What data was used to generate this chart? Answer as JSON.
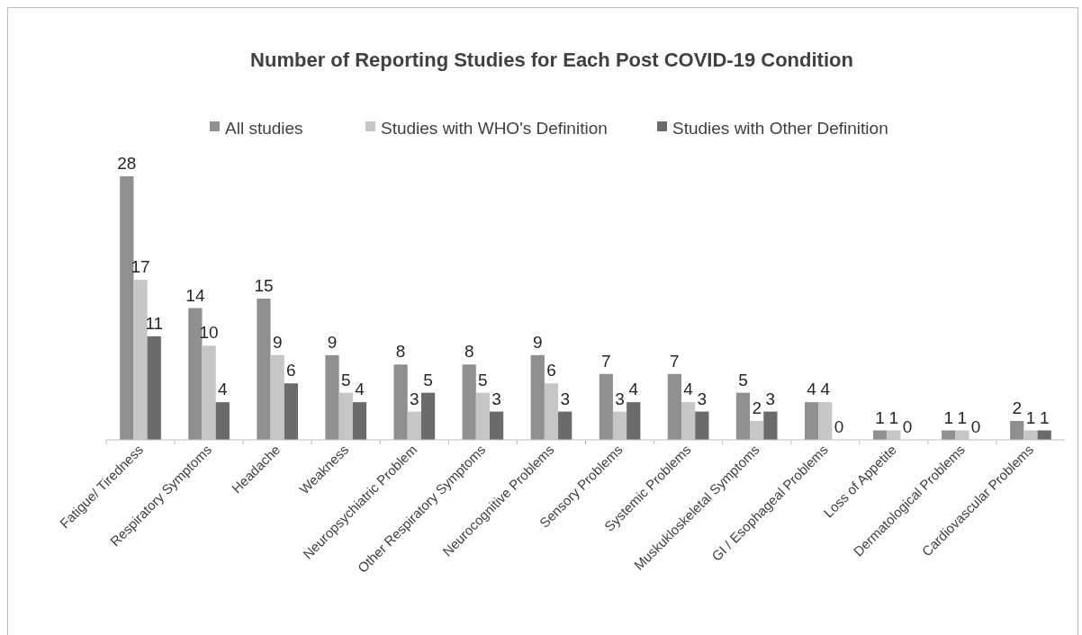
{
  "chart_data": {
    "type": "bar",
    "title": "Number of Reporting Studies for Each Post COVID-19 Condition",
    "categories": [
      "Fatigue/ Tiredness",
      "Respiratory Symptoms",
      "Headache",
      "Weakness",
      "Neuropsychiatric Problem",
      "Other Respiratory Symptoms",
      "Neurocognitive Problems",
      "Sensory Problems",
      "Systemic Problems",
      "Muskukloskeletal Symptoms",
      "GI / Esophageal Problems",
      "Loss of Appetite",
      "Dermatological Problems",
      "Cardiovascular Problems"
    ],
    "series": [
      {
        "name": "All studies",
        "color": "#8f8f8f",
        "values": [
          28,
          14,
          15,
          9,
          8,
          8,
          9,
          7,
          7,
          5,
          4,
          1,
          1,
          2
        ]
      },
      {
        "name": "Studies with WHO's Definition",
        "color": "#c6c6c6",
        "values": [
          17,
          10,
          9,
          5,
          3,
          5,
          6,
          3,
          4,
          2,
          4,
          1,
          1,
          1
        ]
      },
      {
        "name": "Studies with Other Definition",
        "color": "#6b6b6b",
        "values": [
          11,
          4,
          6,
          4,
          5,
          3,
          3,
          4,
          3,
          3,
          0,
          0,
          0,
          1
        ]
      }
    ],
    "data_labels": true,
    "legend": "top"
  }
}
